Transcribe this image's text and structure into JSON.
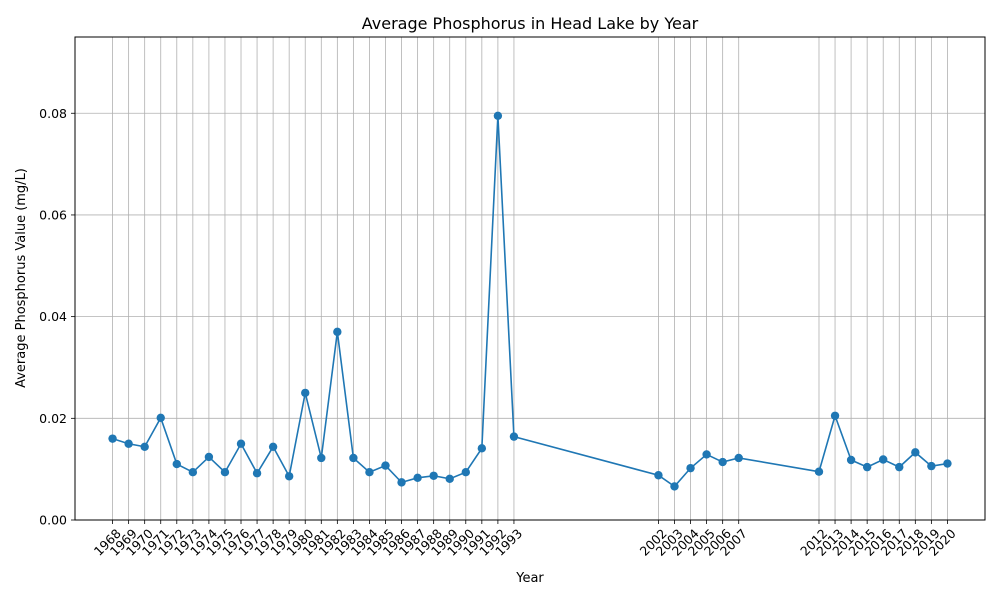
{
  "chart_data": {
    "type": "line",
    "title": "Average Phosphorus in Head Lake by Year",
    "xlabel": "Year",
    "ylabel": "Average Phosphorus Value (mg/L)",
    "ylim": [
      0,
      0.095
    ],
    "y_ticks": [
      "0.00",
      "0.02",
      "0.04",
      "0.06",
      "0.08"
    ],
    "grid": true,
    "legend": "none",
    "series_color": "#1f77b4",
    "x_tick_labels": [
      "1968",
      "1969",
      "1970",
      "1971",
      "1972",
      "1973",
      "1974",
      "1975",
      "1976",
      "1977",
      "1978",
      "1979",
      "1980",
      "1981",
      "1982",
      "1983",
      "1984",
      "1985",
      "1986",
      "1987",
      "1988",
      "1989",
      "1990",
      "1991",
      "1992",
      "1993",
      "2002",
      "2003",
      "2004",
      "2005",
      "2006",
      "2007",
      "2012",
      "2013",
      "2014",
      "2015",
      "2016",
      "2017",
      "2018",
      "2019",
      "2020"
    ],
    "series": [
      {
        "points": [
          {
            "x": 1968,
            "y": 0.016
          },
          {
            "x": 1969,
            "y": 0.015
          },
          {
            "x": 1970,
            "y": 0.0144
          },
          {
            "x": 1971,
            "y": 0.0201
          },
          {
            "x": 1972,
            "y": 0.011
          },
          {
            "x": 1973,
            "y": 0.0094
          },
          {
            "x": 1974,
            "y": 0.0124
          },
          {
            "x": 1975,
            "y": 0.0094
          },
          {
            "x": 1976,
            "y": 0.015
          },
          {
            "x": 1977,
            "y": 0.0092
          },
          {
            "x": 1978,
            "y": 0.0144
          },
          {
            "x": 1979,
            "y": 0.0086
          },
          {
            "x": 1980,
            "y": 0.025
          },
          {
            "x": 1981,
            "y": 0.0122
          },
          {
            "x": 1982,
            "y": 0.037
          },
          {
            "x": 1983,
            "y": 0.0122
          },
          {
            "x": 1984,
            "y": 0.0094
          },
          {
            "x": 1985,
            "y": 0.0107
          },
          {
            "x": 1986,
            "y": 0.0074
          },
          {
            "x": 1987,
            "y": 0.0083
          },
          {
            "x": 1988,
            "y": 0.0087
          },
          {
            "x": 1989,
            "y": 0.0081
          },
          {
            "x": 1990,
            "y": 0.0094
          },
          {
            "x": 1991,
            "y": 0.0141
          },
          {
            "x": 1992,
            "y": 0.0795
          },
          {
            "x": 1993,
            "y": 0.0164
          },
          {
            "x": 2002,
            "y": 0.0088
          },
          {
            "x": 2003,
            "y": 0.0066
          },
          {
            "x": 2004,
            "y": 0.0102
          },
          {
            "x": 2005,
            "y": 0.0129
          },
          {
            "x": 2006,
            "y": 0.0114
          },
          {
            "x": 2007,
            "y": 0.0122
          },
          {
            "x": 2012,
            "y": 0.0095
          },
          {
            "x": 2013,
            "y": 0.0205
          },
          {
            "x": 2014,
            "y": 0.0118
          },
          {
            "x": 2015,
            "y": 0.0104
          },
          {
            "x": 2016,
            "y": 0.0119
          },
          {
            "x": 2017,
            "y": 0.0104
          },
          {
            "x": 2018,
            "y": 0.0133
          },
          {
            "x": 2019,
            "y": 0.0106
          },
          {
            "x": 2020,
            "y": 0.0111
          }
        ]
      }
    ]
  }
}
